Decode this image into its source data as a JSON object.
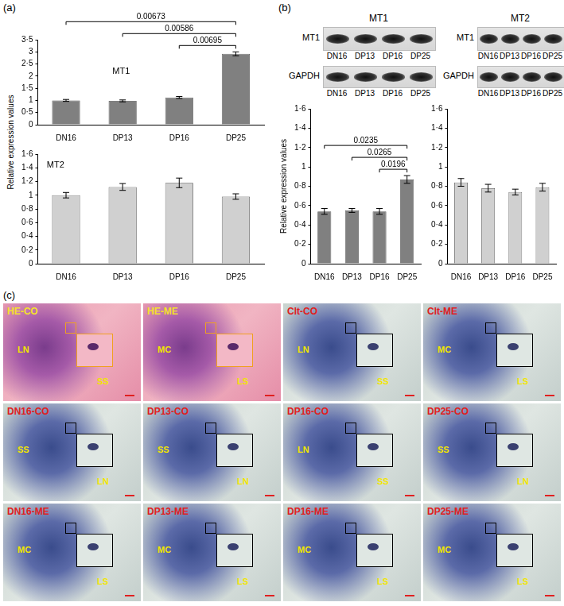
{
  "panel_labels": [
    "(a)",
    "(b)",
    "(c)"
  ],
  "panel_a_y_label": "Relative expression values",
  "chart_data": [
    {
      "type": "bar",
      "title": "MT1",
      "categories": [
        "DN16",
        "DP13",
        "DP16",
        "DP25"
      ],
      "values": [
        1.0,
        0.98,
        1.12,
        2.92
      ],
      "errors": [
        0.04,
        0.04,
        0.04,
        0.08
      ],
      "color": "#808080",
      "ylim": [
        0,
        3.5
      ],
      "yticks": [
        0,
        {
          "value": 0.5,
          "label": "0·5"
        },
        1,
        {
          "value": 1.5,
          "label": "1·5"
        },
        2,
        {
          "value": 2.5,
          "label": "2·5"
        },
        3,
        {
          "value": 3.5,
          "label": "3·5"
        }
      ],
      "grid": false,
      "annotations": [
        {
          "from": "DN16",
          "to": "DP25",
          "p": 0.00673
        },
        {
          "from": "DP13",
          "to": "DP25",
          "p": 0.00586
        },
        {
          "from": "DP16",
          "to": "DP25",
          "p": 0.00695
        }
      ]
    },
    {
      "type": "bar",
      "title": "MT2",
      "categories": [
        "DN16",
        "DP13",
        "DP16",
        "DP25"
      ],
      "values": [
        1.0,
        1.12,
        1.18,
        0.98
      ],
      "errors": [
        0.04,
        0.05,
        0.07,
        0.04
      ],
      "color": "#d0d0d0",
      "ylim": [
        0,
        1.6
      ],
      "yticks": [
        0,
        {
          "value": 0.2,
          "label": "0·2"
        },
        {
          "value": 0.4,
          "label": "0·4"
        },
        {
          "value": 0.6,
          "label": "0·6"
        },
        {
          "value": 0.8,
          "label": "0·8"
        },
        1,
        {
          "value": 1.2,
          "label": "1·2"
        },
        {
          "value": 1.4,
          "label": "1·4"
        },
        {
          "value": 1.6,
          "label": "1·6"
        }
      ],
      "grid": false
    },
    {
      "type": "bar",
      "y_label": "Relative expression values",
      "categories": [
        "DN16",
        "DP13",
        "DP16",
        "DP25"
      ],
      "values": [
        0.54,
        0.55,
        0.54,
        0.87
      ],
      "errors": [
        0.03,
        0.02,
        0.03,
        0.04
      ],
      "color": "#808080",
      "ylim": [
        0,
        1.6
      ],
      "yticks": [
        0,
        {
          "value": 0.2,
          "label": "0·2"
        },
        {
          "value": 0.4,
          "label": "0·4"
        },
        {
          "value": 0.6,
          "label": "0·6"
        },
        {
          "value": 0.8,
          "label": "0·8"
        },
        1,
        {
          "value": 1.2,
          "label": "1·2"
        },
        {
          "value": 1.4,
          "label": "1·4"
        },
        {
          "value": 1.6,
          "label": "1·6"
        }
      ],
      "grid": false,
      "annotations": [
        {
          "from": "DN16",
          "to": "DP25",
          "p": 0.0235
        },
        {
          "from": "DP13",
          "to": "DP25",
          "p": 0.0265
        },
        {
          "from": "DP16",
          "to": "DP25",
          "p": 0.0196
        }
      ]
    },
    {
      "type": "bar",
      "categories": [
        "DN16",
        "DP13",
        "DP16",
        "DP25"
      ],
      "values": [
        0.84,
        0.78,
        0.74,
        0.79
      ],
      "errors": [
        0.04,
        0.04,
        0.03,
        0.04
      ],
      "color": "#d0d0d0",
      "ylim": [
        0,
        1.6
      ],
      "yticks": [
        0,
        {
          "value": 0.2,
          "label": "0·2"
        },
        {
          "value": 0.4,
          "label": "0·4"
        },
        {
          "value": 0.6,
          "label": "0·6"
        },
        {
          "value": 0.8,
          "label": "0·8"
        },
        1,
        {
          "value": 1.2,
          "label": "1·2"
        },
        {
          "value": 1.4,
          "label": "1·4"
        },
        {
          "value": 1.6,
          "label": "1·6"
        }
      ],
      "grid": false
    }
  ],
  "blots": [
    {
      "title": "MT1",
      "rows": [
        "MT1",
        "GAPDH"
      ],
      "lanes": [
        "DN16",
        "DP13",
        "DP16",
        "DP25"
      ]
    },
    {
      "title": "MT2",
      "rows": [
        "MT1",
        "GAPDH"
      ],
      "lanes": [
        "DN16",
        "DP13",
        "DP16",
        "DP25"
      ]
    }
  ],
  "micrographs": [
    {
      "label": "HE-CO",
      "regions": [
        "LN",
        "SS"
      ]
    },
    {
      "label": "HE-ME",
      "regions": [
        "MC",
        "LS"
      ]
    },
    {
      "label": "Clt-CO",
      "regions": [
        "LN",
        "SS"
      ]
    },
    {
      "label": "Clt-ME",
      "regions": [
        "MC",
        "LS"
      ]
    },
    {
      "label": "DN16-CO",
      "regions": [
        "SS",
        "LN"
      ]
    },
    {
      "label": "DP13-CO",
      "regions": [
        "SS",
        "LN"
      ]
    },
    {
      "label": "DP16-CO",
      "regions": [
        "LN",
        "SS"
      ]
    },
    {
      "label": "DP25-CO",
      "regions": [
        "SS",
        "LN"
      ]
    },
    {
      "label": "DN16-ME",
      "regions": [
        "MC",
        "LS"
      ]
    },
    {
      "label": "DP13-ME",
      "regions": [
        "MC",
        "LS"
      ]
    },
    {
      "label": "DP16-ME",
      "regions": [
        "MC",
        "LS"
      ]
    },
    {
      "label": "DP25-ME",
      "regions": [
        "MC",
        "LS"
      ]
    }
  ]
}
